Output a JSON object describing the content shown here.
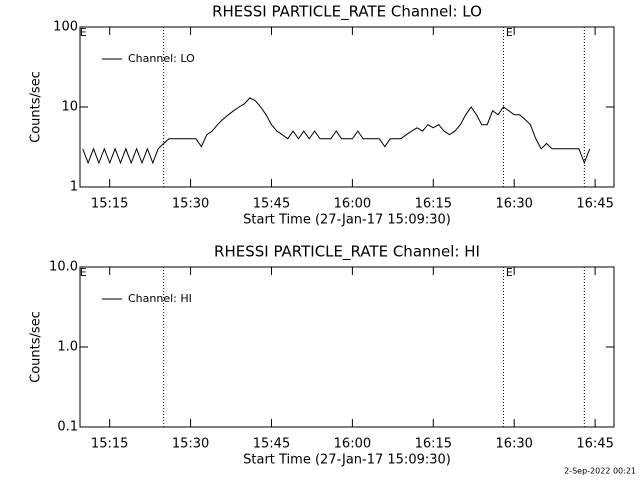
{
  "chart_data": [
    {
      "type": "line",
      "title": "RHESSI PARTICLE_RATE Channel: LO",
      "xlabel": "Start Time (27-Jan-17 15:09:30)",
      "ylabel": "Counts/sec",
      "x": [
        "15:10",
        "15:11",
        "15:12",
        "15:13",
        "15:14",
        "15:15",
        "15:16",
        "15:17",
        "15:18",
        "15:19",
        "15:20",
        "15:21",
        "15:22",
        "15:23",
        "15:24",
        "15:25",
        "15:26",
        "15:27",
        "15:28",
        "15:29",
        "15:30",
        "15:31",
        "15:32",
        "15:33",
        "15:34",
        "15:35",
        "15:36",
        "15:37",
        "15:38",
        "15:39",
        "15:40",
        "15:41",
        "15:42",
        "15:43",
        "15:44",
        "15:45",
        "15:46",
        "15:47",
        "15:48",
        "15:49",
        "15:50",
        "15:51",
        "15:52",
        "15:53",
        "15:54",
        "15:55",
        "15:56",
        "15:57",
        "15:58",
        "15:59",
        "16:00",
        "16:01",
        "16:02",
        "16:03",
        "16:04",
        "16:05",
        "16:06",
        "16:07",
        "16:08",
        "16:09",
        "16:10",
        "16:11",
        "16:12",
        "16:13",
        "16:14",
        "16:15",
        "16:16",
        "16:17",
        "16:18",
        "16:19",
        "16:20",
        "16:21",
        "16:22",
        "16:23",
        "16:24",
        "16:25",
        "16:26",
        "16:27",
        "16:28",
        "16:29",
        "16:30",
        "16:31",
        "16:32",
        "16:33",
        "16:34",
        "16:35",
        "16:36",
        "16:37",
        "16:38",
        "16:39",
        "16:40",
        "16:41",
        "16:42",
        "16:43",
        "16:44"
      ],
      "series": [
        {
          "name": "Channel: LO",
          "color": "#000000",
          "values": [
            3,
            2,
            3,
            2,
            3,
            2,
            3,
            2,
            3,
            2,
            3,
            2,
            3,
            2,
            3,
            3.5,
            4,
            4,
            4,
            4,
            4,
            4,
            3.2,
            4.5,
            5,
            6,
            7,
            8,
            9,
            10,
            11,
            13,
            12,
            10,
            8,
            6,
            5,
            4.5,
            4,
            5,
            4,
            5,
            4,
            5,
            4,
            4,
            4,
            5,
            4,
            4,
            4,
            5,
            4,
            4,
            4,
            4,
            3.2,
            4,
            4,
            4,
            4.5,
            5,
            5.5,
            5,
            6,
            5.5,
            6,
            5,
            4.5,
            5,
            6,
            8,
            10,
            8,
            6,
            6,
            9,
            8,
            10,
            9,
            8,
            8,
            7,
            6,
            4,
            3,
            3.5,
            3,
            3,
            3,
            3,
            3,
            3,
            2,
            3
          ]
        }
      ],
      "xlim": [
        "15:09:30",
        "16:48:30"
      ],
      "xticks": [
        "15:15",
        "15:30",
        "15:45",
        "16:00",
        "16:15",
        "16:30",
        "16:45"
      ],
      "ylim": [
        1,
        100
      ],
      "yticks": [
        1,
        10,
        100
      ],
      "log_y": true,
      "legend": "upper-left",
      "vlines": [
        "15:25",
        "16:28",
        "16:43"
      ],
      "annotations": [
        {
          "text": "E",
          "x": "15:10"
        },
        {
          "text": "E",
          "x": "16:29"
        }
      ]
    },
    {
      "type": "line",
      "title": "RHESSI PARTICLE_RATE Channel: HI",
      "xlabel": "Start Time (27-Jan-17 15:09:30)",
      "ylabel": "Counts/sec",
      "x": [],
      "series": [
        {
          "name": "Channel: HI",
          "color": "#000000",
          "values": []
        }
      ],
      "xlim": [
        "15:09:30",
        "16:48:30"
      ],
      "xticks": [
        "15:15",
        "15:30",
        "15:45",
        "16:00",
        "16:15",
        "16:30",
        "16:45"
      ],
      "ylim": [
        0.1,
        10
      ],
      "yticks": [
        0.1,
        {
          "value": 1,
          "label": "1.0"
        },
        {
          "value": 10,
          "label": "10.0"
        }
      ],
      "log_y": true,
      "legend": "upper-left",
      "vlines": [
        "15:25",
        "16:28",
        "16:43"
      ],
      "annotations": [
        {
          "text": "E",
          "x": "15:10"
        },
        {
          "text": "E",
          "x": "16:29"
        }
      ]
    }
  ],
  "footer": "2-Sep-2022 00:21"
}
